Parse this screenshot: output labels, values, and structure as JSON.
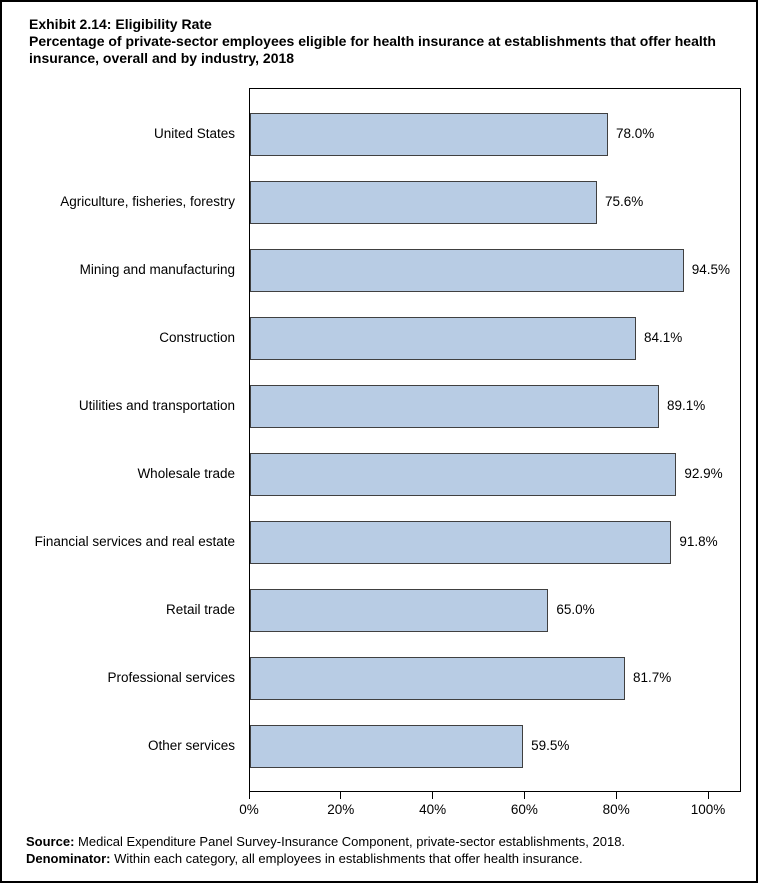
{
  "title": {
    "exhibit": "Exhibit 2.14: Eligibility Rate",
    "subtitle": "Percentage of private-sector employees eligible for health insurance at establishments that offer health insurance, overall and by industry, 2018"
  },
  "chart_data": {
    "type": "bar",
    "orientation": "horizontal",
    "title": "Exhibit 2.14: Eligibility Rate",
    "subtitle": "Percentage of private-sector employees eligible for health insurance at establishments that offer health insurance, overall and by industry, 2018",
    "categories": [
      "United States",
      "Agriculture, fisheries, forestry",
      "Mining and manufacturing",
      "Construction",
      "Utilities and transportation",
      "Wholesale trade",
      "Financial services and real estate",
      "Retail trade",
      "Professional services",
      "Other services"
    ],
    "values": [
      78.0,
      75.6,
      94.5,
      84.1,
      89.1,
      92.9,
      91.8,
      65.0,
      81.7,
      59.5
    ],
    "value_labels": [
      "78.0%",
      "75.6%",
      "94.5%",
      "84.1%",
      "89.1%",
      "92.9%",
      "91.8%",
      "65.0%",
      "81.7%",
      "59.5%"
    ],
    "xlabel": "",
    "ylabel": "",
    "xlim": [
      0,
      107
    ],
    "x_ticks": [
      0,
      20,
      40,
      60,
      80,
      100
    ],
    "x_tick_labels": [
      "0%",
      "20%",
      "40%",
      "60%",
      "80%",
      "100%"
    ],
    "grid": false,
    "legend": "none",
    "bar_color": "#B8CCE4",
    "bar_border_color": "#404040"
  },
  "footer": {
    "source_label": "Source:",
    "source_text": "Medical Expenditure Panel Survey-Insurance Component, private-sector establishments, 2018.",
    "denominator_label": "Denominator:",
    "denominator_text": "Within each category, all employees in establishments that offer health insurance."
  }
}
